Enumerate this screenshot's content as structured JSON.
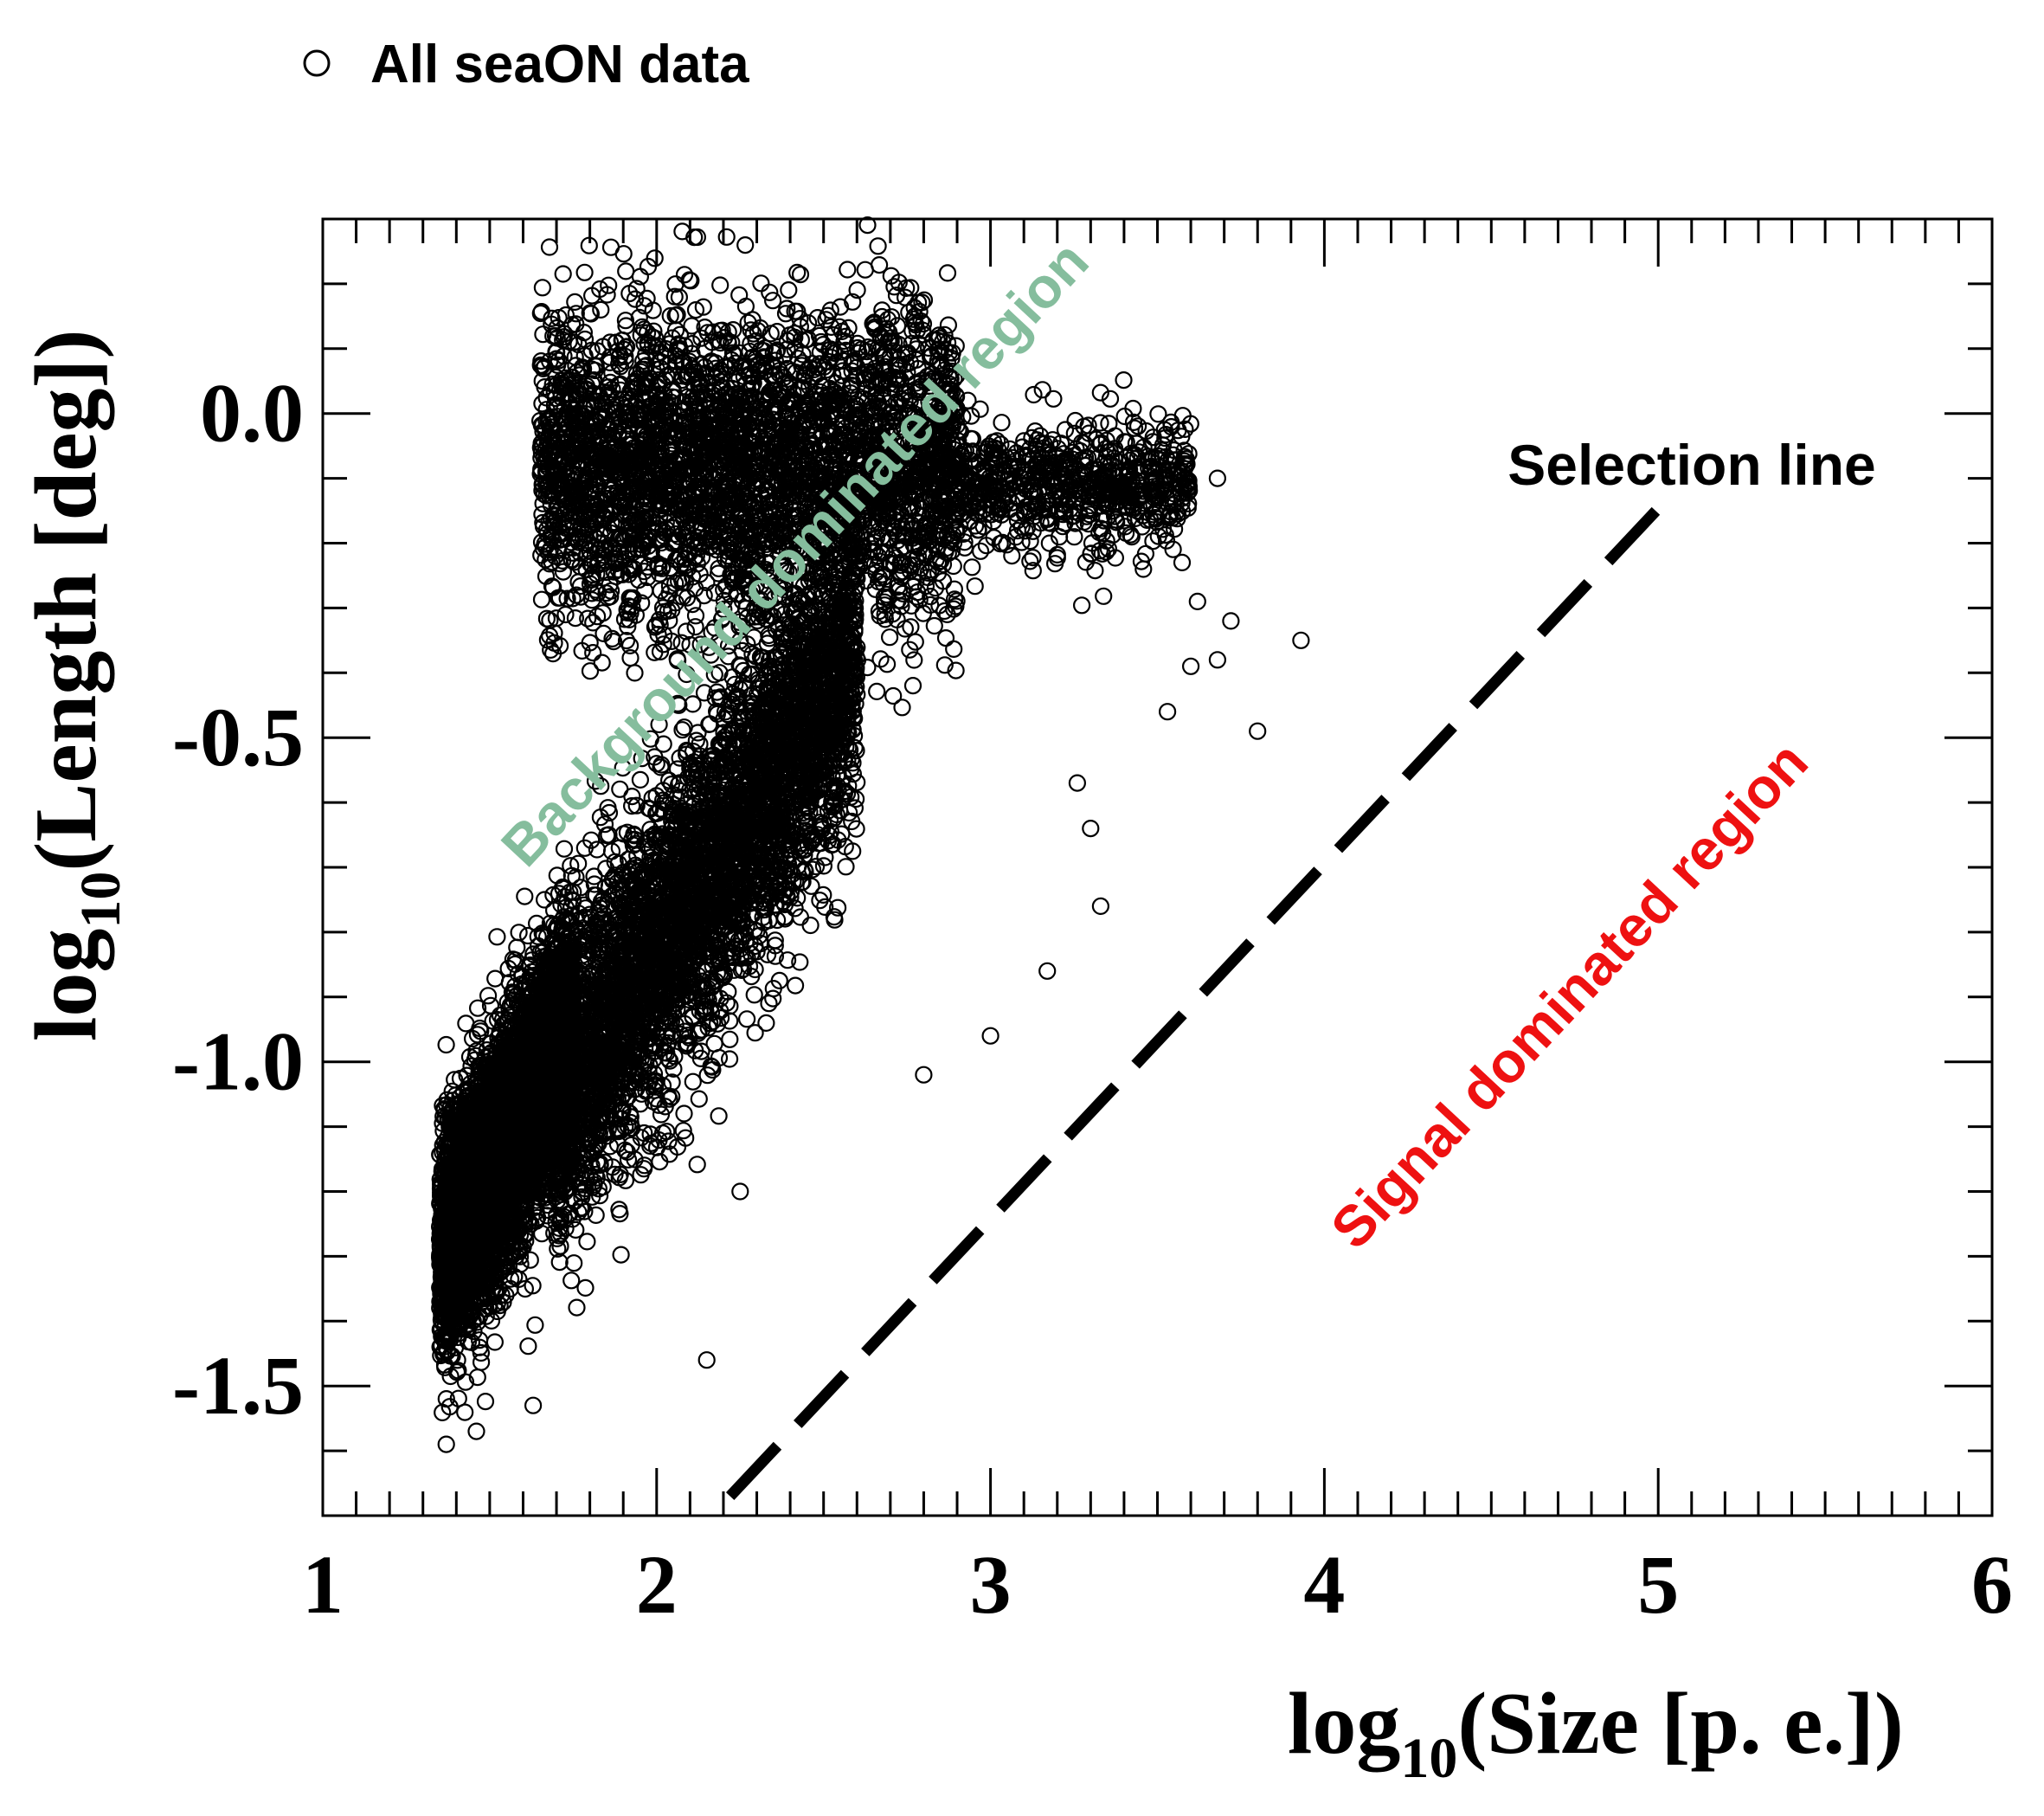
{
  "chart_data": {
    "type": "scatter",
    "title": "",
    "xlabel_main": "log",
    "xlabel_sub": "10",
    "xlabel_rest": "(Size [p. e.])",
    "ylabel_main": "log",
    "ylabel_sub": "10",
    "ylabel_rest": "(Length [deg])",
    "xlim": [
      1,
      6
    ],
    "ylim": [
      -1.7,
      0.3
    ],
    "xticks": [
      1,
      2,
      3,
      4,
      5,
      6
    ],
    "xtick_labels": [
      "1",
      "2",
      "3",
      "4",
      "5",
      "6"
    ],
    "yticks": [
      -1.5,
      -1.0,
      -0.5,
      0.0
    ],
    "ytick_labels": [
      "-1.5",
      "-1.0",
      "-0.5",
      "0.0"
    ],
    "grid": false,
    "legend": {
      "position": "top-left",
      "entries": [
        {
          "label": "All seaON data",
          "marker": "open-circle"
        }
      ]
    },
    "series": [
      {
        "name": "All seaON data",
        "marker": "open-circle",
        "clusters": [
          {
            "x_range": [
              1.35,
              1.75
            ],
            "y_center_at_x0": -1.3,
            "slope": 0.9,
            "spread": 0.09,
            "count": 5200
          },
          {
            "x_range": [
              1.7,
              2.6
            ],
            "y_center_at_x0": -1.05,
            "slope": 0.75,
            "spread": 0.12,
            "count": 4200
          },
          {
            "x_range": [
              1.65,
              2.9
            ],
            "y_center": -0.08,
            "spread": 0.12,
            "count": 3600
          },
          {
            "x_range": [
              2.9,
              3.6
            ],
            "y_center": -0.11,
            "spread": 0.05,
            "count": 700
          }
        ],
        "outliers": [
          {
            "x": 1.37,
            "y": -1.59
          },
          {
            "x": 1.46,
            "y": -1.57
          },
          {
            "x": 1.63,
            "y": -1.53
          },
          {
            "x": 2.15,
            "y": -1.46
          },
          {
            "x": 2.25,
            "y": -1.2
          },
          {
            "x": 2.8,
            "y": -1.02
          },
          {
            "x": 3.0,
            "y": -0.96
          },
          {
            "x": 3.17,
            "y": -0.86
          },
          {
            "x": 3.33,
            "y": -0.76
          },
          {
            "x": 3.3,
            "y": -0.64
          },
          {
            "x": 3.26,
            "y": -0.57
          },
          {
            "x": 3.53,
            "y": -0.46
          },
          {
            "x": 3.6,
            "y": -0.39
          },
          {
            "x": 3.8,
            "y": -0.49
          },
          {
            "x": 3.72,
            "y": -0.32
          },
          {
            "x": 3.62,
            "y": -0.29
          },
          {
            "x": 3.93,
            "y": -0.35
          },
          {
            "x": 3.68,
            "y": -0.38
          },
          {
            "x": 3.68,
            "y": -0.1
          },
          {
            "x": 3.55,
            "y": -0.09
          }
        ]
      },
      {
        "name": "Selection line",
        "type": "line",
        "style": "dashed",
        "x": [
          2.22,
          5.03
        ],
        "y": [
          -1.67,
          -0.13
        ]
      }
    ],
    "annotations": [
      {
        "text": "Background dominated region",
        "color": "#85bd9d",
        "x": 1.95,
        "y": -0.34,
        "rotation_deg": -47
      },
      {
        "text": "Signal dominated region",
        "color": "#ee1111",
        "x": 4.4,
        "y": -0.88,
        "rotation_deg": -47
      },
      {
        "text": "Selection line",
        "color": "#000000",
        "x": 4.5,
        "y": -0.08,
        "rotation_deg": 0
      }
    ]
  }
}
